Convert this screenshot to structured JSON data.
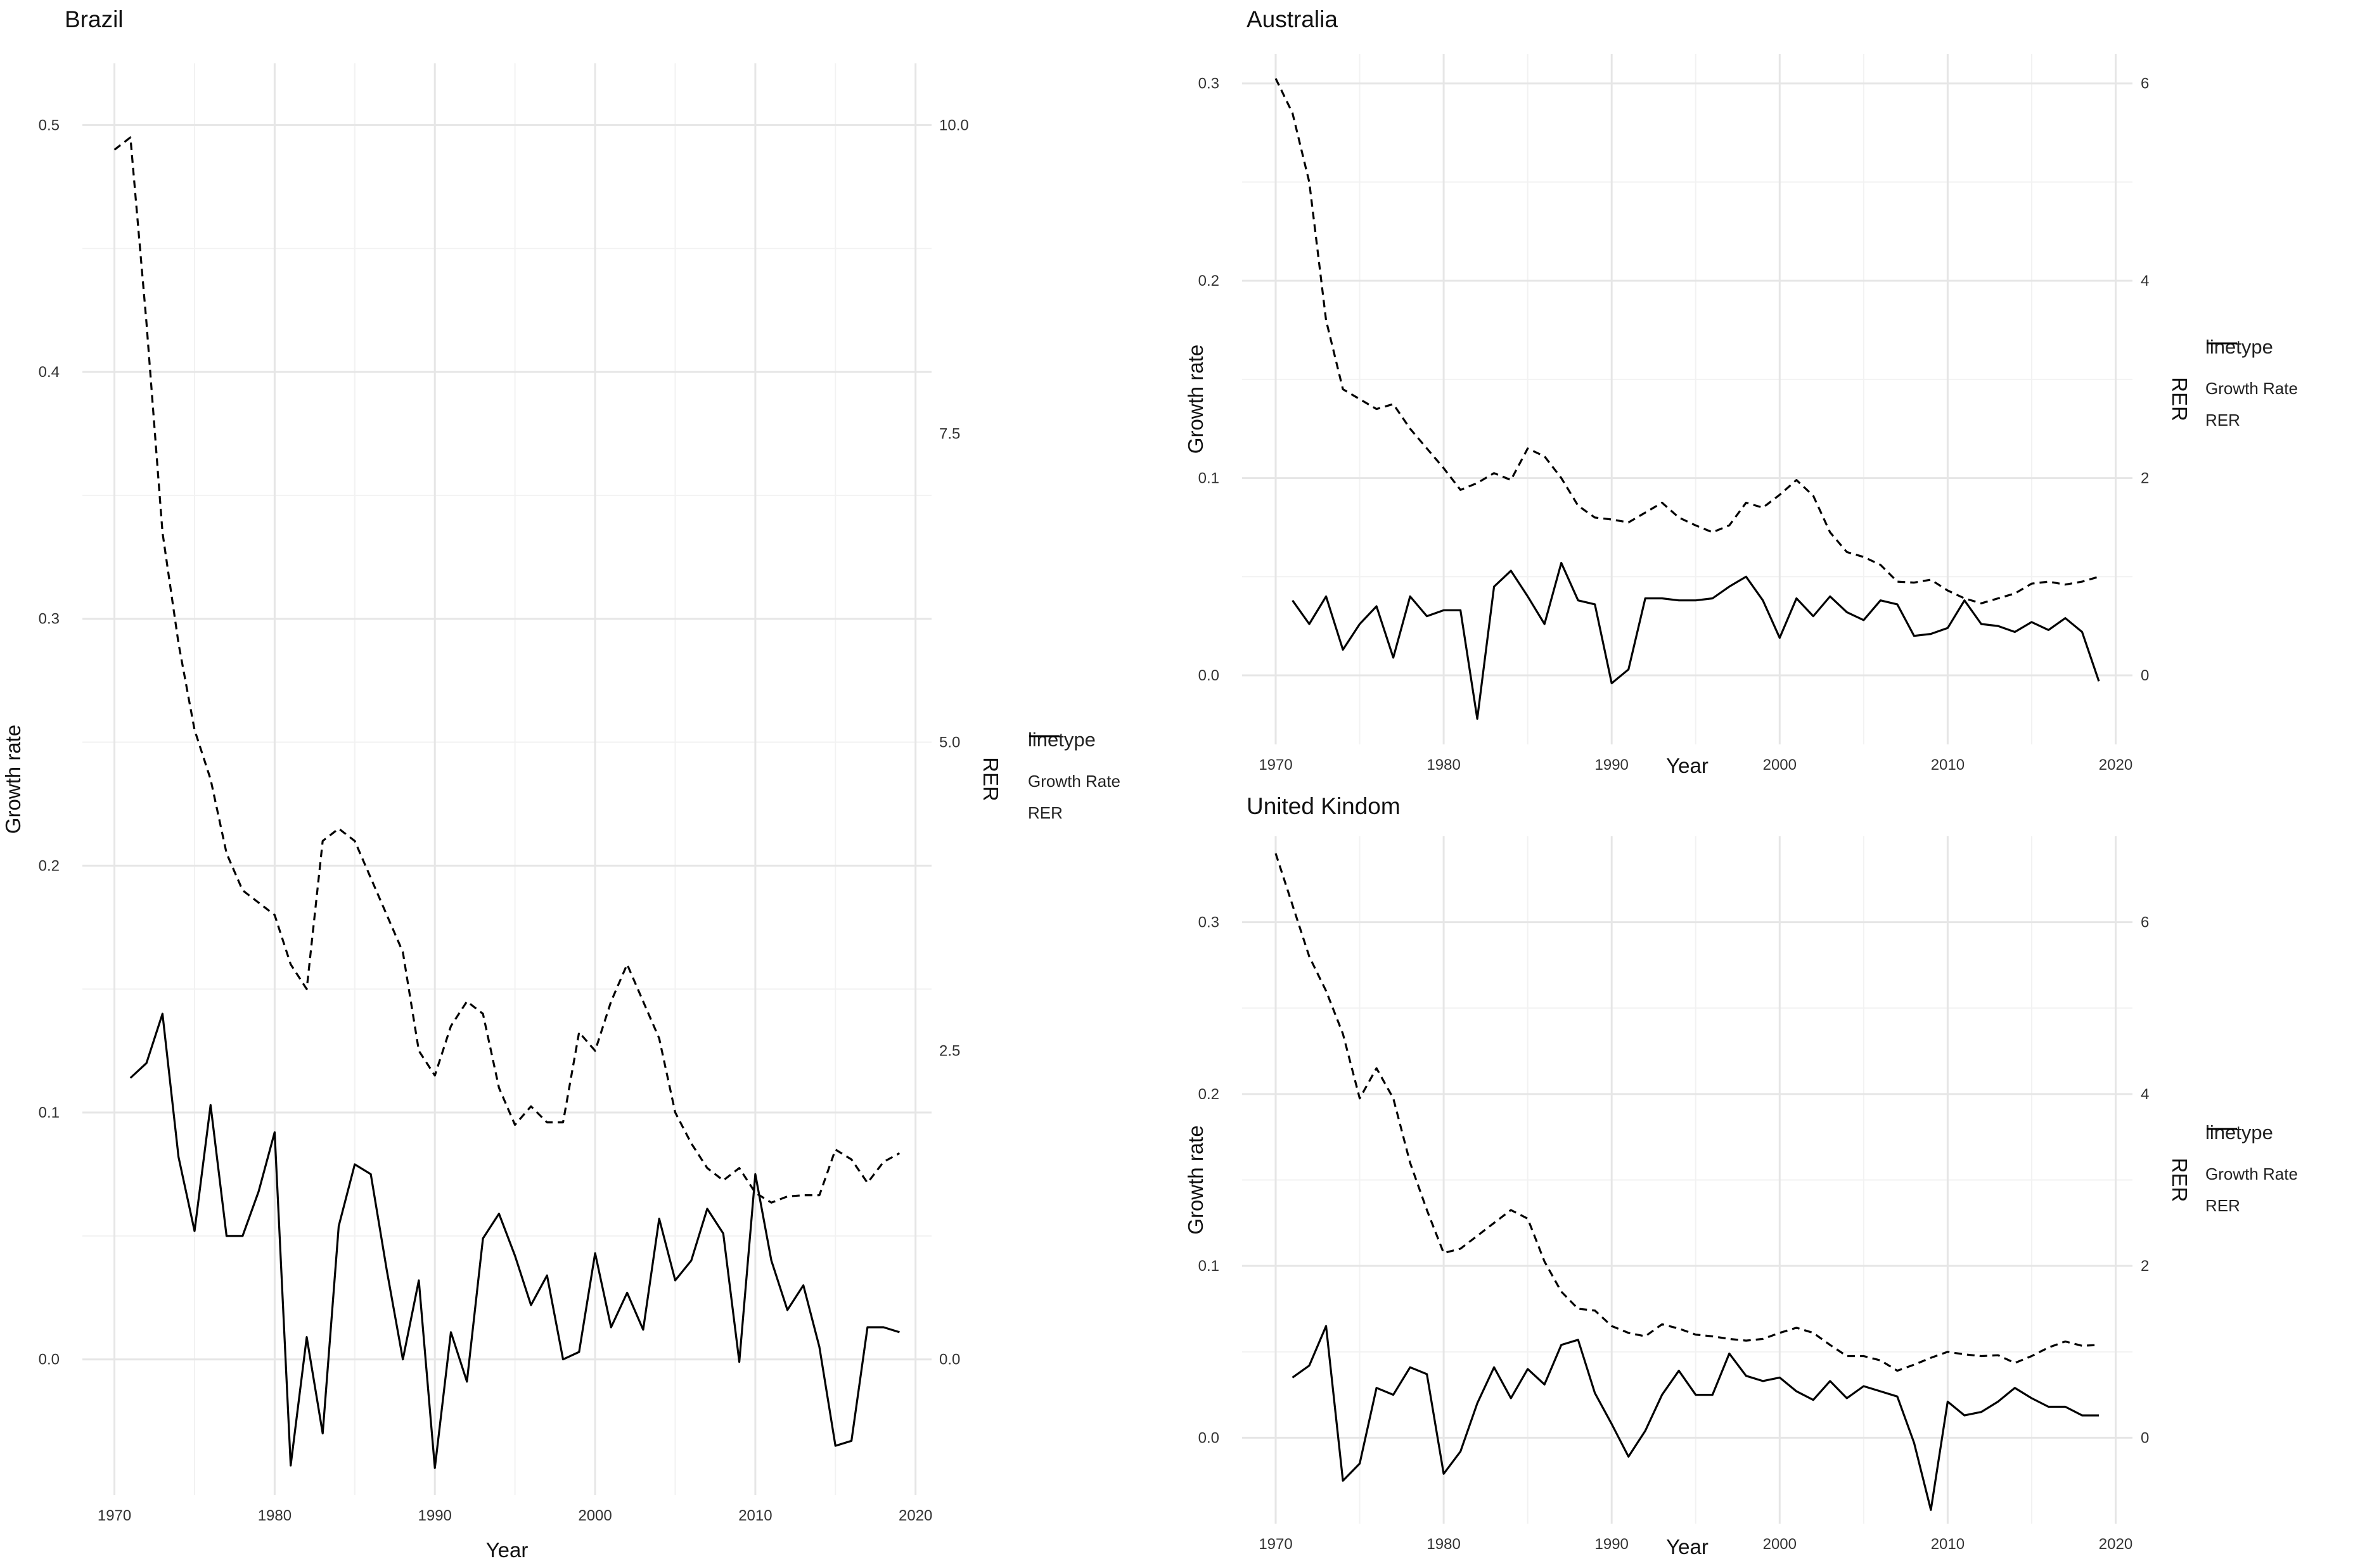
{
  "chart_data": [
    {
      "id": "brazil",
      "type": "line",
      "title": "Brazil",
      "xlabel": "Year",
      "ylabel": "Growth rate",
      "y2label": "RER",
      "xlim": [
        1968,
        2021
      ],
      "ylim": [
        -0.055,
        0.525
      ],
      "y2lim": [
        -1.1,
        10.5
      ],
      "xticks": [
        1970,
        1980,
        1990,
        2000,
        2010,
        2020
      ],
      "yticks": [
        0.0,
        0.1,
        0.2,
        0.3,
        0.4,
        0.5
      ],
      "ytick_labels": [
        "0.0",
        "0.1",
        "0.2",
        "0.3",
        "0.4",
        "0.5"
      ],
      "y2ticks": [
        0.0,
        2.5,
        5.0,
        7.5,
        10.0
      ],
      "y2tick_labels": [
        "0.0",
        "2.5",
        "5.0",
        "7.5",
        "10.0"
      ],
      "legend": {
        "title": "linetype",
        "entries": [
          "Growth Rate",
          "RER"
        ]
      },
      "series": [
        {
          "name": "Growth Rate",
          "axis": "left",
          "linestyle": "solid",
          "x": [
            1971,
            1972,
            1973,
            1974,
            1975,
            1976,
            1977,
            1978,
            1979,
            1980,
            1981,
            1982,
            1983,
            1984,
            1985,
            1986,
            1987,
            1988,
            1989,
            1990,
            1991,
            1992,
            1993,
            1994,
            1995,
            1996,
            1997,
            1998,
            1999,
            2000,
            2001,
            2002,
            2003,
            2004,
            2005,
            2006,
            2007,
            2008,
            2009,
            2010,
            2011,
            2012,
            2013,
            2014,
            2015,
            2016,
            2017,
            2018,
            2019
          ],
          "values": [
            0.114,
            0.12,
            0.14,
            0.082,
            0.052,
            0.103,
            0.05,
            0.05,
            0.068,
            0.092,
            -0.043,
            0.009,
            -0.03,
            0.054,
            0.079,
            0.075,
            0.036,
            0.0,
            0.032,
            -0.044,
            0.011,
            -0.009,
            0.049,
            0.059,
            0.042,
            0.022,
            0.034,
            0.0,
            0.003,
            0.043,
            0.013,
            0.027,
            0.012,
            0.057,
            0.032,
            0.04,
            0.061,
            0.051,
            -0.001,
            0.075,
            0.04,
            0.02,
            0.03,
            0.005,
            -0.035,
            -0.033,
            0.013,
            0.013,
            0.011
          ]
        },
        {
          "name": "RER",
          "axis": "right",
          "linestyle": "dashed",
          "x": [
            1970,
            1971,
            1972,
            1973,
            1974,
            1975,
            1976,
            1977,
            1978,
            1979,
            1980,
            1981,
            1982,
            1983,
            1984,
            1985,
            1986,
            1987,
            1988,
            1989,
            1990,
            1991,
            1992,
            1993,
            1994,
            1995,
            1996,
            1997,
            1998,
            1999,
            2000,
            2001,
            2002,
            2003,
            2004,
            2005,
            2006,
            2007,
            2008,
            2009,
            2010,
            2011,
            2012,
            2013,
            2014,
            2015,
            2016,
            2017,
            2018,
            2019
          ],
          "values": [
            9.8,
            9.9,
            8.4,
            6.7,
            5.8,
            5.1,
            4.7,
            4.1,
            3.8,
            3.7,
            3.6,
            3.2,
            3.0,
            4.2,
            4.3,
            4.2,
            3.9,
            3.6,
            3.3,
            2.5,
            2.3,
            2.7,
            2.9,
            2.8,
            2.2,
            1.9,
            2.05,
            1.92,
            1.92,
            2.65,
            2.5,
            2.9,
            3.2,
            2.9,
            2.6,
            2.0,
            1.75,
            1.55,
            1.45,
            1.55,
            1.35,
            1.27,
            1.32,
            1.33,
            1.33,
            1.7,
            1.62,
            1.43,
            1.6,
            1.67
          ]
        }
      ]
    },
    {
      "id": "australia",
      "type": "line",
      "title": "Australia",
      "xlabel": "Year",
      "ylabel": "Growth rate",
      "y2label": "RER",
      "xlim": [
        1968,
        2021
      ],
      "ylim": [
        -0.035,
        0.315
      ],
      "y2lim": [
        -0.7,
        6.3
      ],
      "xticks": [
        1970,
        1980,
        1990,
        2000,
        2010,
        2020
      ],
      "yticks": [
        0.0,
        0.1,
        0.2,
        0.3
      ],
      "ytick_labels": [
        "0.0",
        "0.1",
        "0.2",
        "0.3"
      ],
      "y2ticks": [
        0,
        2,
        4,
        6
      ],
      "y2tick_labels": [
        "0",
        "2",
        "4",
        "6"
      ],
      "legend": {
        "title": "linetype",
        "entries": [
          "Growth Rate",
          "RER"
        ]
      },
      "series": [
        {
          "name": "Growth Rate",
          "axis": "left",
          "linestyle": "solid",
          "x": [
            1971,
            1972,
            1973,
            1974,
            1975,
            1976,
            1977,
            1978,
            1979,
            1980,
            1981,
            1982,
            1983,
            1984,
            1985,
            1986,
            1987,
            1988,
            1989,
            1990,
            1991,
            1992,
            1993,
            1994,
            1995,
            1996,
            1997,
            1998,
            1999,
            2000,
            2001,
            2002,
            2003,
            2004,
            2005,
            2006,
            2007,
            2008,
            2009,
            2010,
            2011,
            2012,
            2013,
            2014,
            2015,
            2016,
            2017,
            2018,
            2019
          ],
          "values": [
            0.038,
            0.026,
            0.04,
            0.013,
            0.026,
            0.035,
            0.009,
            0.04,
            0.03,
            0.033,
            0.033,
            -0.022,
            0.045,
            0.053,
            0.04,
            0.026,
            0.057,
            0.038,
            0.036,
            -0.004,
            0.003,
            0.039,
            0.039,
            0.038,
            0.038,
            0.039,
            0.045,
            0.05,
            0.038,
            0.019,
            0.039,
            0.03,
            0.04,
            0.032,
            0.028,
            0.038,
            0.036,
            0.02,
            0.021,
            0.024,
            0.038,
            0.026,
            0.025,
            0.022,
            0.027,
            0.023,
            0.029,
            0.022,
            -0.003
          ]
        },
        {
          "name": "RER",
          "axis": "right",
          "linestyle": "dashed",
          "x": [
            1970,
            1971,
            1972,
            1973,
            1974,
            1975,
            1976,
            1977,
            1978,
            1979,
            1980,
            1981,
            1982,
            1983,
            1984,
            1985,
            1986,
            1987,
            1988,
            1989,
            1990,
            1991,
            1992,
            1993,
            1994,
            1995,
            1996,
            1997,
            1998,
            1999,
            2000,
            2001,
            2002,
            2003,
            2004,
            2005,
            2006,
            2007,
            2008,
            2009,
            2010,
            2011,
            2012,
            2013,
            2014,
            2015,
            2016,
            2017,
            2018,
            2019
          ],
          "values": [
            6.05,
            5.7,
            5.0,
            3.6,
            2.9,
            2.8,
            2.7,
            2.75,
            2.5,
            2.3,
            2.1,
            1.88,
            1.95,
            2.05,
            1.98,
            2.3,
            2.22,
            2.0,
            1.72,
            1.6,
            1.58,
            1.55,
            1.65,
            1.75,
            1.6,
            1.52,
            1.45,
            1.52,
            1.75,
            1.7,
            1.83,
            1.98,
            1.82,
            1.45,
            1.25,
            1.2,
            1.12,
            0.95,
            0.94,
            0.97,
            0.86,
            0.78,
            0.73,
            0.78,
            0.83,
            0.93,
            0.95,
            0.92,
            0.95,
            1.0
          ]
        }
      ]
    },
    {
      "id": "uk",
      "type": "line",
      "title": "United Kindom",
      "xlabel": "Year",
      "ylabel": "Growth rate",
      "y2label": "RER",
      "xlim": [
        1968,
        2021
      ],
      "ylim": [
        -0.05,
        0.35
      ],
      "y2lim": [
        -1.0,
        7.0
      ],
      "xticks": [
        1970,
        1980,
        1990,
        2000,
        2010,
        2020
      ],
      "yticks": [
        0.0,
        0.1,
        0.2,
        0.3
      ],
      "ytick_labels": [
        "0.0",
        "0.1",
        "0.2",
        "0.3"
      ],
      "y2ticks": [
        0,
        2,
        4,
        6
      ],
      "y2tick_labels": [
        "0",
        "2",
        "4",
        "6"
      ],
      "legend": {
        "title": "linetype",
        "entries": [
          "Growth Rate",
          "RER"
        ]
      },
      "series": [
        {
          "name": "Growth Rate",
          "axis": "left",
          "linestyle": "solid",
          "x": [
            1971,
            1972,
            1973,
            1974,
            1975,
            1976,
            1977,
            1978,
            1979,
            1980,
            1981,
            1982,
            1983,
            1984,
            1985,
            1986,
            1987,
            1988,
            1989,
            1990,
            1991,
            1992,
            1993,
            1994,
            1995,
            1996,
            1997,
            1998,
            1999,
            2000,
            2001,
            2002,
            2003,
            2004,
            2005,
            2006,
            2007,
            2008,
            2009,
            2010,
            2011,
            2012,
            2013,
            2014,
            2015,
            2016,
            2017,
            2018,
            2019
          ],
          "values": [
            0.035,
            0.042,
            0.065,
            -0.025,
            -0.015,
            0.029,
            0.025,
            0.041,
            0.037,
            -0.021,
            -0.008,
            0.02,
            0.041,
            0.023,
            0.04,
            0.031,
            0.054,
            0.057,
            0.026,
            0.008,
            -0.011,
            0.004,
            0.025,
            0.039,
            0.025,
            0.025,
            0.049,
            0.036,
            0.033,
            0.035,
            0.027,
            0.022,
            0.033,
            0.023,
            0.03,
            0.027,
            0.024,
            -0.003,
            -0.042,
            0.021,
            0.013,
            0.015,
            0.021,
            0.029,
            0.023,
            0.018,
            0.018,
            0.013,
            0.013
          ]
        },
        {
          "name": "RER",
          "axis": "right",
          "linestyle": "dashed",
          "x": [
            1970,
            1971,
            1972,
            1973,
            1974,
            1975,
            1976,
            1977,
            1978,
            1979,
            1980,
            1981,
            1982,
            1983,
            1984,
            1985,
            1986,
            1987,
            1988,
            1989,
            1990,
            1991,
            1992,
            1993,
            1994,
            1995,
            1996,
            1997,
            1998,
            1999,
            2000,
            2001,
            2002,
            2003,
            2004,
            2005,
            2006,
            2007,
            2008,
            2009,
            2010,
            2011,
            2012,
            2013,
            2014,
            2015,
            2016,
            2017,
            2018,
            2019
          ],
          "values": [
            6.8,
            6.2,
            5.6,
            5.2,
            4.7,
            3.95,
            4.3,
            3.95,
            3.2,
            2.65,
            2.15,
            2.2,
            2.35,
            2.5,
            2.65,
            2.55,
            2.05,
            1.7,
            1.5,
            1.48,
            1.3,
            1.22,
            1.18,
            1.32,
            1.27,
            1.2,
            1.18,
            1.15,
            1.13,
            1.15,
            1.22,
            1.28,
            1.22,
            1.08,
            0.95,
            0.95,
            0.9,
            0.78,
            0.85,
            0.93,
            1.0,
            0.97,
            0.95,
            0.96,
            0.87,
            0.95,
            1.05,
            1.12,
            1.07,
            1.08
          ]
        }
      ]
    }
  ]
}
